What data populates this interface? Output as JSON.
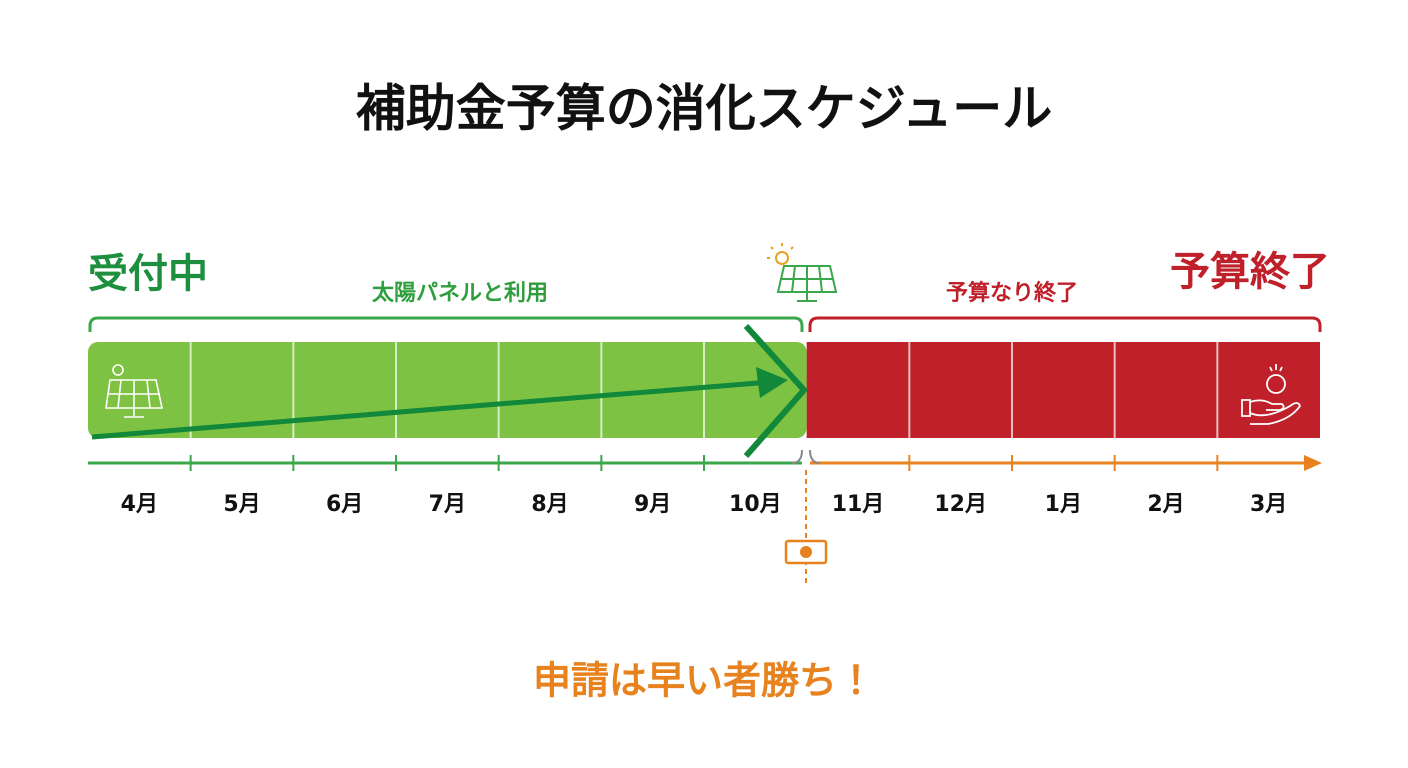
{
  "title": "補助金予算の消化スケジュール",
  "phases": [
    {
      "label": "受付中",
      "caption": "太陽パネルと利用",
      "months": [
        "4月",
        "5月",
        "6月",
        "7月",
        "8月",
        "9月",
        "10月"
      ]
    },
    {
      "label": "予算終了",
      "caption": "予算なり終了",
      "months": [
        "11月",
        "12月",
        "1月",
        "2月",
        "3月"
      ]
    }
  ],
  "footer": "申請は早い者勝ち！"
}
